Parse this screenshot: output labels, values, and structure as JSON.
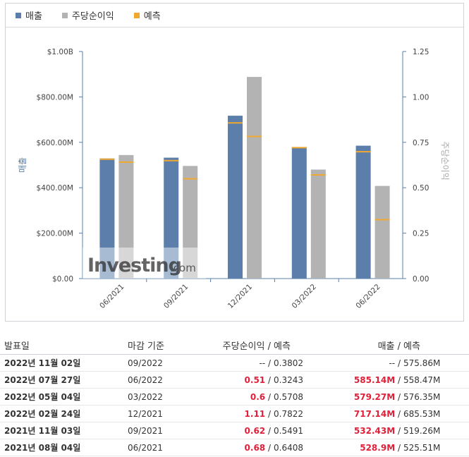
{
  "legend": [
    {
      "label": "매출",
      "color": "#5b7faa"
    },
    {
      "label": "주당순이익",
      "color": "#b3b3b3"
    },
    {
      "label": "예측",
      "color": "#f0a830"
    }
  ],
  "chart_data": {
    "type": "bar",
    "categories": [
      "06/2021",
      "09/2021",
      "12/2021",
      "03/2022",
      "06/2022"
    ],
    "series": [
      {
        "name": "매출",
        "axis": "left",
        "values": [
          528.9,
          532.43,
          717.14,
          579.27,
          585.14
        ],
        "color": "#5b7faa"
      },
      {
        "name": "주당순이익",
        "axis": "right",
        "values": [
          0.68,
          0.62,
          1.11,
          0.6,
          0.51
        ],
        "color": "#b3b3b3"
      }
    ],
    "forecast": {
      "name": "예측",
      "color": "#f0a830",
      "revenue": [
        525.51,
        519.26,
        685.53,
        576.35,
        558.47
      ],
      "eps": [
        0.6408,
        0.5491,
        0.7822,
        0.5708,
        0.3243
      ]
    },
    "ylabel_left": "매출",
    "ylabel_right": "주당순이익",
    "ylim_left": [
      0,
      1000
    ],
    "ylim_right": [
      0,
      1.25
    ],
    "yticks_left": [
      "$0.00",
      "$200.00M",
      "$400.00M",
      "$600.00M",
      "$800.00M",
      "$1.00B"
    ],
    "yticks_right": [
      "0.00",
      "0.25",
      "0.50",
      "0.75",
      "1.00",
      "1.25"
    ],
    "grid": false,
    "legend_position": "top-left"
  },
  "watermark": {
    "brand": "Investing",
    "suffix": ".com"
  },
  "table": {
    "headers": {
      "date": "발표일",
      "period": "마감 기준",
      "eps": "주당순이익",
      "eps_sep": " /",
      "eps_forecast": "예측",
      "revenue": "매출",
      "revenue_sep": " /",
      "revenue_forecast": "예측"
    },
    "rows": [
      {
        "date": "2022년 11월 02일",
        "period": "09/2022",
        "eps": "--",
        "eps_forecast": "0.3802",
        "revenue": "--",
        "revenue_forecast": "575.86M",
        "pending": true
      },
      {
        "date": "2022년 07월 27일",
        "period": "06/2022",
        "eps": "0.51",
        "eps_forecast": "0.3243",
        "revenue": "585.14M",
        "revenue_forecast": "558.47M",
        "pending": false
      },
      {
        "date": "2022년 05월 04일",
        "period": "03/2022",
        "eps": "0.6",
        "eps_forecast": "0.5708",
        "revenue": "579.27M",
        "revenue_forecast": "576.35M",
        "pending": false
      },
      {
        "date": "2022년 02월 24일",
        "period": "12/2021",
        "eps": "1.11",
        "eps_forecast": "0.7822",
        "revenue": "717.14M",
        "revenue_forecast": "685.53M",
        "pending": false
      },
      {
        "date": "2021년 11월 03일",
        "period": "09/2021",
        "eps": "0.62",
        "eps_forecast": "0.5491",
        "revenue": "532.43M",
        "revenue_forecast": "519.26M",
        "pending": false
      },
      {
        "date": "2021년 08월 04일",
        "period": "06/2021",
        "eps": "0.68",
        "eps_forecast": "0.6408",
        "revenue": "528.9M",
        "revenue_forecast": "525.51M",
        "pending": false
      }
    ]
  }
}
